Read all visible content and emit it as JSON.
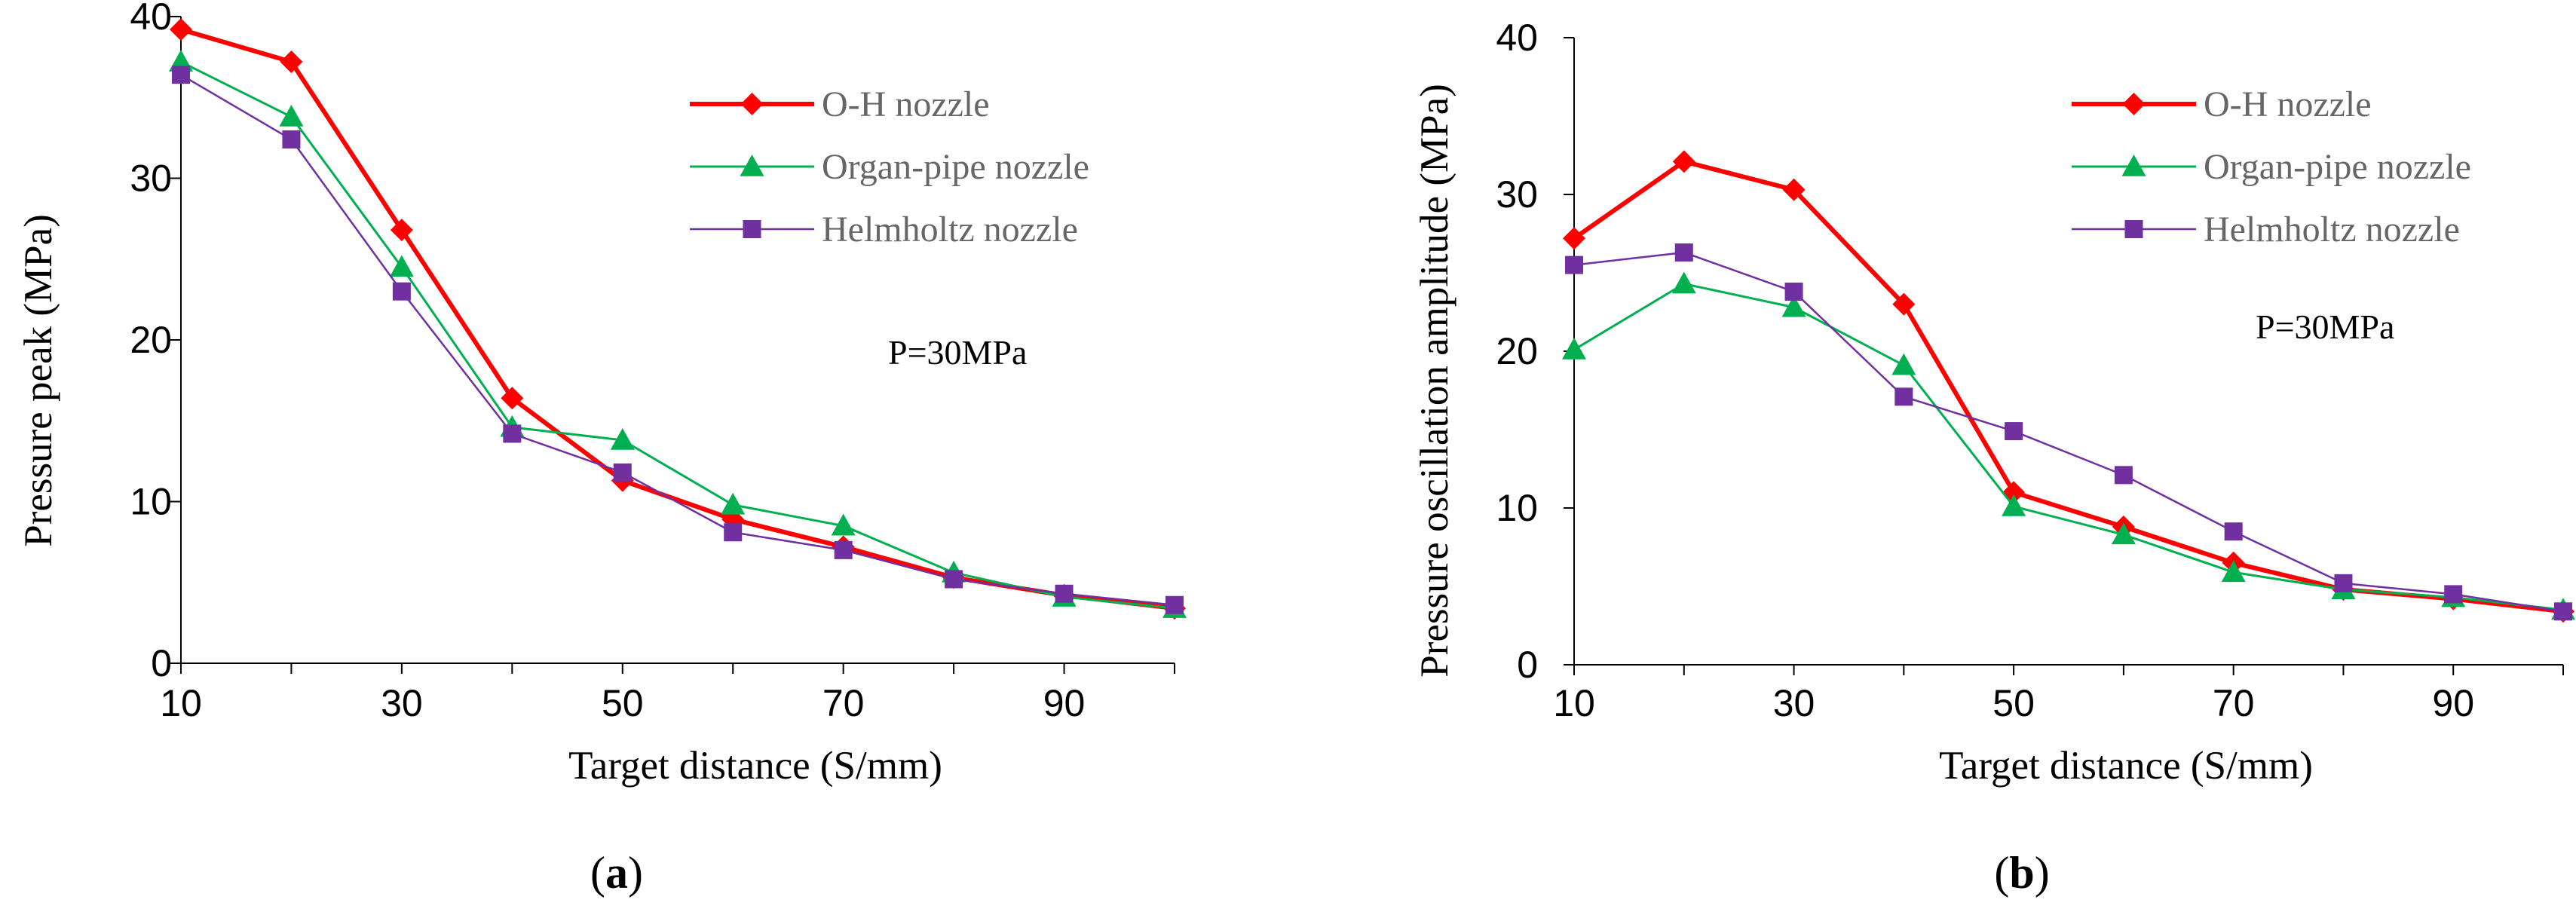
{
  "chart_data": [
    {
      "type": "line",
      "panel": "a",
      "caption_open": "(",
      "caption_letter": "a",
      "caption_close": ")",
      "xlabel": "Target distance (S/mm)",
      "ylabel": "Pressure peak  (MPa)",
      "xlim": [
        10,
        100
      ],
      "ylim": [
        0,
        40
      ],
      "xticks": [
        10,
        30,
        50,
        70,
        90
      ],
      "yticks": [
        0,
        10,
        20,
        30,
        40
      ],
      "annotation": "P=30MPa",
      "legend_position": "top-right",
      "x": [
        10,
        20,
        30,
        40,
        50,
        60,
        70,
        80,
        90,
        100
      ],
      "series": [
        {
          "name": "O-H nozzle",
          "color": "#ff0000",
          "marker": "diamond",
          "values": [
            39.2,
            37.2,
            26.8,
            16.4,
            11.3,
            8.9,
            7.2,
            5.3,
            4.2,
            3.4
          ]
        },
        {
          "name": "Organ-pipe nozzle",
          "color": "#00b050",
          "marker": "triangle",
          "values": [
            37.2,
            33.8,
            24.5,
            14.6,
            13.8,
            9.8,
            8.5,
            5.6,
            4.1,
            3.4
          ]
        },
        {
          "name": "Helmholtz nozzle",
          "color": "#7030a0",
          "marker": "square",
          "values": [
            36.4,
            32.4,
            23.0,
            14.2,
            11.8,
            8.1,
            7.0,
            5.2,
            4.3,
            3.6
          ]
        }
      ]
    },
    {
      "type": "line",
      "panel": "b",
      "caption_open": "(",
      "caption_letter": "b",
      "caption_close": ")",
      "xlabel": "Target distance (S/mm)",
      "ylabel": "Pressure  oscillation amplitude  (MPa)",
      "xlim": [
        10,
        100
      ],
      "ylim": [
        0,
        40
      ],
      "xticks": [
        10,
        30,
        50,
        70,
        90
      ],
      "yticks": [
        0,
        10,
        20,
        30,
        40
      ],
      "annotation": "P=30MPa",
      "legend_position": "top-right",
      "x": [
        10,
        20,
        30,
        40,
        50,
        60,
        70,
        80,
        90,
        100
      ],
      "series": [
        {
          "name": "O-H nozzle",
          "color": "#ff0000",
          "marker": "diamond",
          "values": [
            27.2,
            32.1,
            30.3,
            23.0,
            11.0,
            8.8,
            6.5,
            4.8,
            4.2,
            3.4
          ]
        },
        {
          "name": "Organ-pipe nozzle",
          "color": "#00b050",
          "marker": "triangle",
          "values": [
            20.1,
            24.3,
            22.8,
            19.1,
            10.1,
            8.3,
            5.9,
            4.8,
            4.3,
            3.5
          ]
        },
        {
          "name": "Helmholtz nozzle",
          "color": "#7030a0",
          "marker": "square",
          "values": [
            25.5,
            26.3,
            23.8,
            17.1,
            14.9,
            12.1,
            8.5,
            5.2,
            4.5,
            3.4
          ]
        }
      ]
    }
  ]
}
